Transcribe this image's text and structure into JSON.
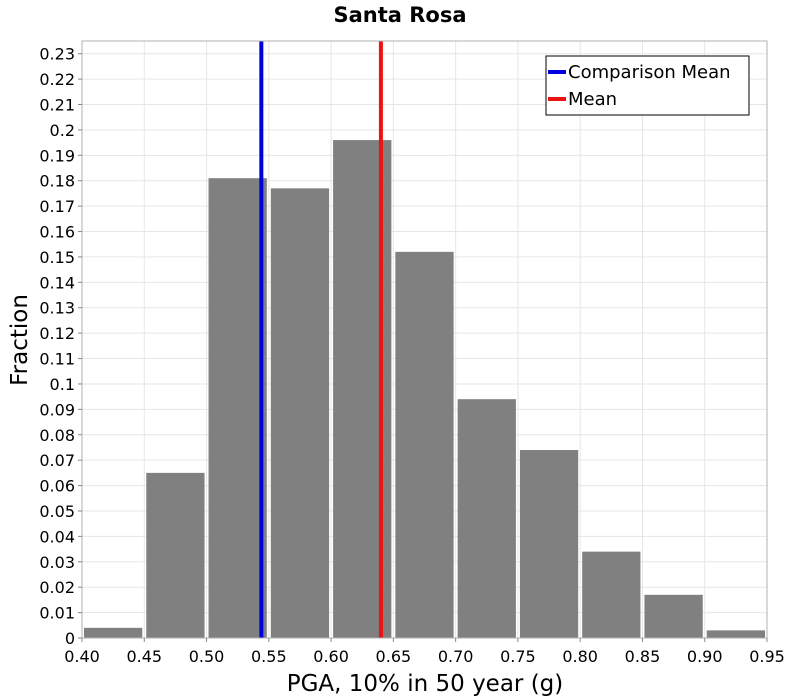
{
  "chart_data": {
    "type": "bar",
    "title": "Santa Rosa",
    "xlabel": "PGA, 10% in 50 year (g)",
    "ylabel": "Fraction",
    "xlim": [
      0.4,
      0.95
    ],
    "ylim": [
      0,
      0.235
    ],
    "grid": true,
    "bin_width": 0.05,
    "x_ticks": [
      "0.40",
      "0.45",
      "0.50",
      "0.55",
      "0.60",
      "0.65",
      "0.70",
      "0.75",
      "0.80",
      "0.85",
      "0.90",
      "0.95"
    ],
    "y_ticks": [
      "0",
      "0.01",
      "0.02",
      "0.03",
      "0.04",
      "0.05",
      "0.06",
      "0.07",
      "0.08",
      "0.09",
      "0.1",
      "0.11",
      "0.12",
      "0.13",
      "0.14",
      "0.15",
      "0.16",
      "0.17",
      "0.18",
      "0.19",
      "0.2",
      "0.21",
      "0.22",
      "0.23"
    ],
    "bins": [
      {
        "start": 0.4,
        "value": 0.004
      },
      {
        "start": 0.45,
        "value": 0.065
      },
      {
        "start": 0.5,
        "value": 0.181
      },
      {
        "start": 0.55,
        "value": 0.177
      },
      {
        "start": 0.6,
        "value": 0.196
      },
      {
        "start": 0.65,
        "value": 0.152
      },
      {
        "start": 0.7,
        "value": 0.094
      },
      {
        "start": 0.75,
        "value": 0.074
      },
      {
        "start": 0.8,
        "value": 0.034
      },
      {
        "start": 0.85,
        "value": 0.017
      },
      {
        "start": 0.9,
        "value": 0.003
      }
    ],
    "bar_color": "#808080",
    "reference_lines": [
      {
        "name": "Comparison Mean",
        "x": 0.544,
        "color": "#0000dd"
      },
      {
        "name": "Mean",
        "x": 0.64,
        "color": "#ee1111"
      }
    ],
    "legend": {
      "placement": "top-right",
      "entries": [
        {
          "label": "Comparison Mean",
          "color": "#0000dd"
        },
        {
          "label": "Mean",
          "color": "#ee1111"
        }
      ]
    }
  }
}
